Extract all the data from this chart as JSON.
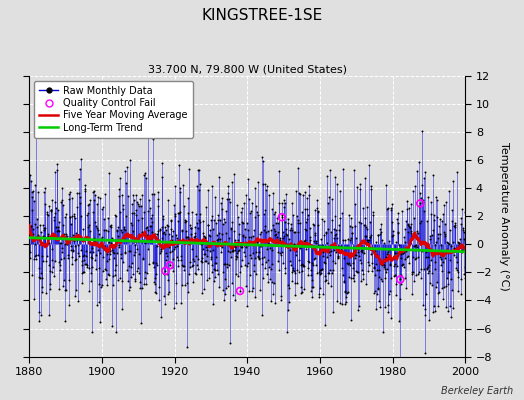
{
  "title": "KINGSTREE-1SE",
  "subtitle": "33.700 N, 79.800 W (United States)",
  "ylabel": "Temperature Anomaly (°C)",
  "watermark": "Berkeley Earth",
  "xlim": [
    1880,
    2000
  ],
  "ylim": [
    -8,
    12
  ],
  "yticks": [
    -8,
    -6,
    -4,
    -2,
    0,
    2,
    4,
    6,
    8,
    10,
    12
  ],
  "xticks": [
    1880,
    1900,
    1920,
    1940,
    1960,
    1980,
    2000
  ],
  "background_color": "#e0e0e0",
  "line_color": "#0000dd",
  "marker_color": "#000000",
  "mavg_color": "#dd0000",
  "trend_color": "#00cc00",
  "qc_color": "#ff00ff",
  "seed": 12345,
  "n_months": 1440,
  "start_year": 1880,
  "noise_std": 2.5,
  "figsize": [
    5.24,
    4.0
  ],
  "dpi": 100
}
